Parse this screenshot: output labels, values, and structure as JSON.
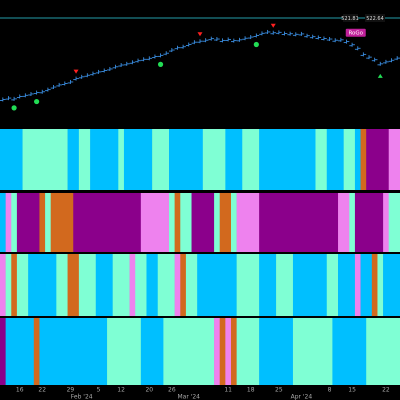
{
  "chart_data": {
    "type": "ohlc",
    "price_labels": [
      "521.81",
      "522.64"
    ],
    "signal_label": "RoGo",
    "ylim": [
      465,
      528
    ],
    "color": "#3a8de0",
    "values": [
      479.5,
      480.2,
      479.8,
      481.0,
      481.6,
      482.3,
      483.0,
      483.4,
      484.5,
      485.8,
      486.9,
      487.6,
      488.4,
      490.1,
      491.0,
      491.8,
      492.6,
      493.5,
      494.2,
      495.0,
      496.1,
      497.0,
      497.6,
      498.4,
      499.2,
      499.9,
      500.4,
      501.3,
      501.9,
      503.0,
      504.6,
      505.8,
      506.3,
      507.4,
      508.6,
      509.1,
      509.6,
      510.4,
      510.2,
      509.5,
      510.0,
      509.4,
      509.8,
      510.6,
      511.2,
      512.0,
      513.1,
      513.8,
      513.4,
      513.6,
      513.0,
      512.9,
      512.6,
      512.8,
      511.9,
      511.4,
      511.0,
      510.5,
      510.2,
      509.6,
      509.8,
      508.9,
      507.3,
      505.5,
      502.4,
      501.0,
      499.7,
      497.6,
      498.6,
      499.4,
      500.5
    ],
    "signals": [
      {
        "bar": 13,
        "type": "sell",
        "color": "#ff2020"
      },
      {
        "bar": 35,
        "type": "sell",
        "color": "#ff2020"
      },
      {
        "bar": 48,
        "type": "sell",
        "color": "#ff2020"
      },
      {
        "bar": 67,
        "type": "buy",
        "color": "#22dd55"
      },
      {
        "bar": 2,
        "type": "dot",
        "color": "#22dd55"
      },
      {
        "bar": 6,
        "type": "dot",
        "color": "#22dd55"
      },
      {
        "bar": 28,
        "type": "dot",
        "color": "#22dd55"
      },
      {
        "bar": 45,
        "type": "dot",
        "color": "#22dd55"
      }
    ],
    "panels": [
      [
        [
          "#00bfff",
          4
        ],
        [
          "#7fffd4",
          8
        ],
        [
          "#00bfff",
          2
        ],
        [
          "#7fffd4",
          2
        ],
        [
          "#00bfff",
          5
        ],
        [
          "#7fffd4",
          1
        ],
        [
          "#00bfff",
          5
        ],
        [
          "#7fffd4",
          3
        ],
        [
          "#00bfff",
          6
        ],
        [
          "#7fffd4",
          4
        ],
        [
          "#00bfff",
          3
        ],
        [
          "#7fffd4",
          3
        ],
        [
          "#00bfff",
          10
        ],
        [
          "#7fffd4",
          2
        ],
        [
          "#00bfff",
          3
        ],
        [
          "#7fffd4",
          2
        ],
        [
          "#00bfff",
          1
        ],
        [
          "#d2691e",
          1
        ],
        [
          "#8b008b",
          4
        ],
        [
          "#ee82ee",
          2
        ]
      ],
      [
        [
          "#00bfff",
          1
        ],
        [
          "#ee82ee",
          1
        ],
        [
          "#7fffd4",
          1
        ],
        [
          "#8b008b",
          4
        ],
        [
          "#d2691e",
          1
        ],
        [
          "#7fffd4",
          1
        ],
        [
          "#d2691e",
          4
        ],
        [
          "#8b008b",
          12
        ],
        [
          "#ee82ee",
          5
        ],
        [
          "#7fffd4",
          1
        ],
        [
          "#d2691e",
          1
        ],
        [
          "#7fffd4",
          2
        ],
        [
          "#8b008b",
          4
        ],
        [
          "#7fffd4",
          1
        ],
        [
          "#d2691e",
          2
        ],
        [
          "#7fffd4",
          1
        ],
        [
          "#ee82ee",
          4
        ],
        [
          "#8b008b",
          14
        ],
        [
          "#ee82ee",
          2
        ],
        [
          "#7fffd4",
          1
        ],
        [
          "#8b008b",
          5
        ],
        [
          "#ee82ee",
          1
        ],
        [
          "#7fffd4",
          2
        ]
      ],
      [
        [
          "#ee82ee",
          1
        ],
        [
          "#7fffd4",
          1
        ],
        [
          "#d2691e",
          1
        ],
        [
          "#7fffd4",
          2
        ],
        [
          "#00bfff",
          5
        ],
        [
          "#7fffd4",
          2
        ],
        [
          "#d2691e",
          2
        ],
        [
          "#7fffd4",
          3
        ],
        [
          "#00bfff",
          3
        ],
        [
          "#7fffd4",
          3
        ],
        [
          "#ee82ee",
          1
        ],
        [
          "#7fffd4",
          2
        ],
        [
          "#00bfff",
          2
        ],
        [
          "#7fffd4",
          3
        ],
        [
          "#ee82ee",
          1
        ],
        [
          "#d2691e",
          1
        ],
        [
          "#7fffd4",
          2
        ],
        [
          "#00bfff",
          7
        ],
        [
          "#7fffd4",
          4
        ],
        [
          "#00bfff",
          3
        ],
        [
          "#7fffd4",
          3
        ],
        [
          "#00bfff",
          6
        ],
        [
          "#7fffd4",
          2
        ],
        [
          "#00bfff",
          3
        ],
        [
          "#ee82ee",
          1
        ],
        [
          "#00bfff",
          2
        ],
        [
          "#d2691e",
          1
        ],
        [
          "#7fffd4",
          1
        ],
        [
          "#00bfff",
          3
        ]
      ],
      [
        [
          "#8b008b",
          1
        ],
        [
          "#00bfff",
          5
        ],
        [
          "#d2691e",
          1
        ],
        [
          "#00bfff",
          12
        ],
        [
          "#7fffd4",
          6
        ],
        [
          "#00bfff",
          4
        ],
        [
          "#7fffd4",
          9
        ],
        [
          "#ee82ee",
          1
        ],
        [
          "#d2691e",
          1
        ],
        [
          "#ee82ee",
          1
        ],
        [
          "#d2691e",
          1
        ],
        [
          "#7fffd4",
          4
        ],
        [
          "#00bfff",
          6
        ],
        [
          "#7fffd4",
          7
        ],
        [
          "#00bfff",
          6
        ],
        [
          "#7fffd4",
          6
        ]
      ]
    ],
    "day_labels": [
      {
        "bar": 3,
        "text": "16"
      },
      {
        "bar": 7,
        "text": "22"
      },
      {
        "bar": 12,
        "text": "29"
      },
      {
        "bar": 17,
        "text": "5"
      },
      {
        "bar": 21,
        "text": "12"
      },
      {
        "bar": 26,
        "text": "20"
      },
      {
        "bar": 30,
        "text": "26"
      },
      {
        "bar": 40,
        "text": "11"
      },
      {
        "bar": 44,
        "text": "18"
      },
      {
        "bar": 49,
        "text": "25"
      },
      {
        "bar": 58,
        "text": "8"
      },
      {
        "bar": 62,
        "text": "15"
      },
      {
        "bar": 68,
        "text": "22"
      }
    ],
    "month_labels": [
      {
        "bar": 14,
        "text": "Feb '24"
      },
      {
        "bar": 33,
        "text": "Mar '24"
      },
      {
        "bar": 53,
        "text": "Apr '24"
      }
    ]
  }
}
